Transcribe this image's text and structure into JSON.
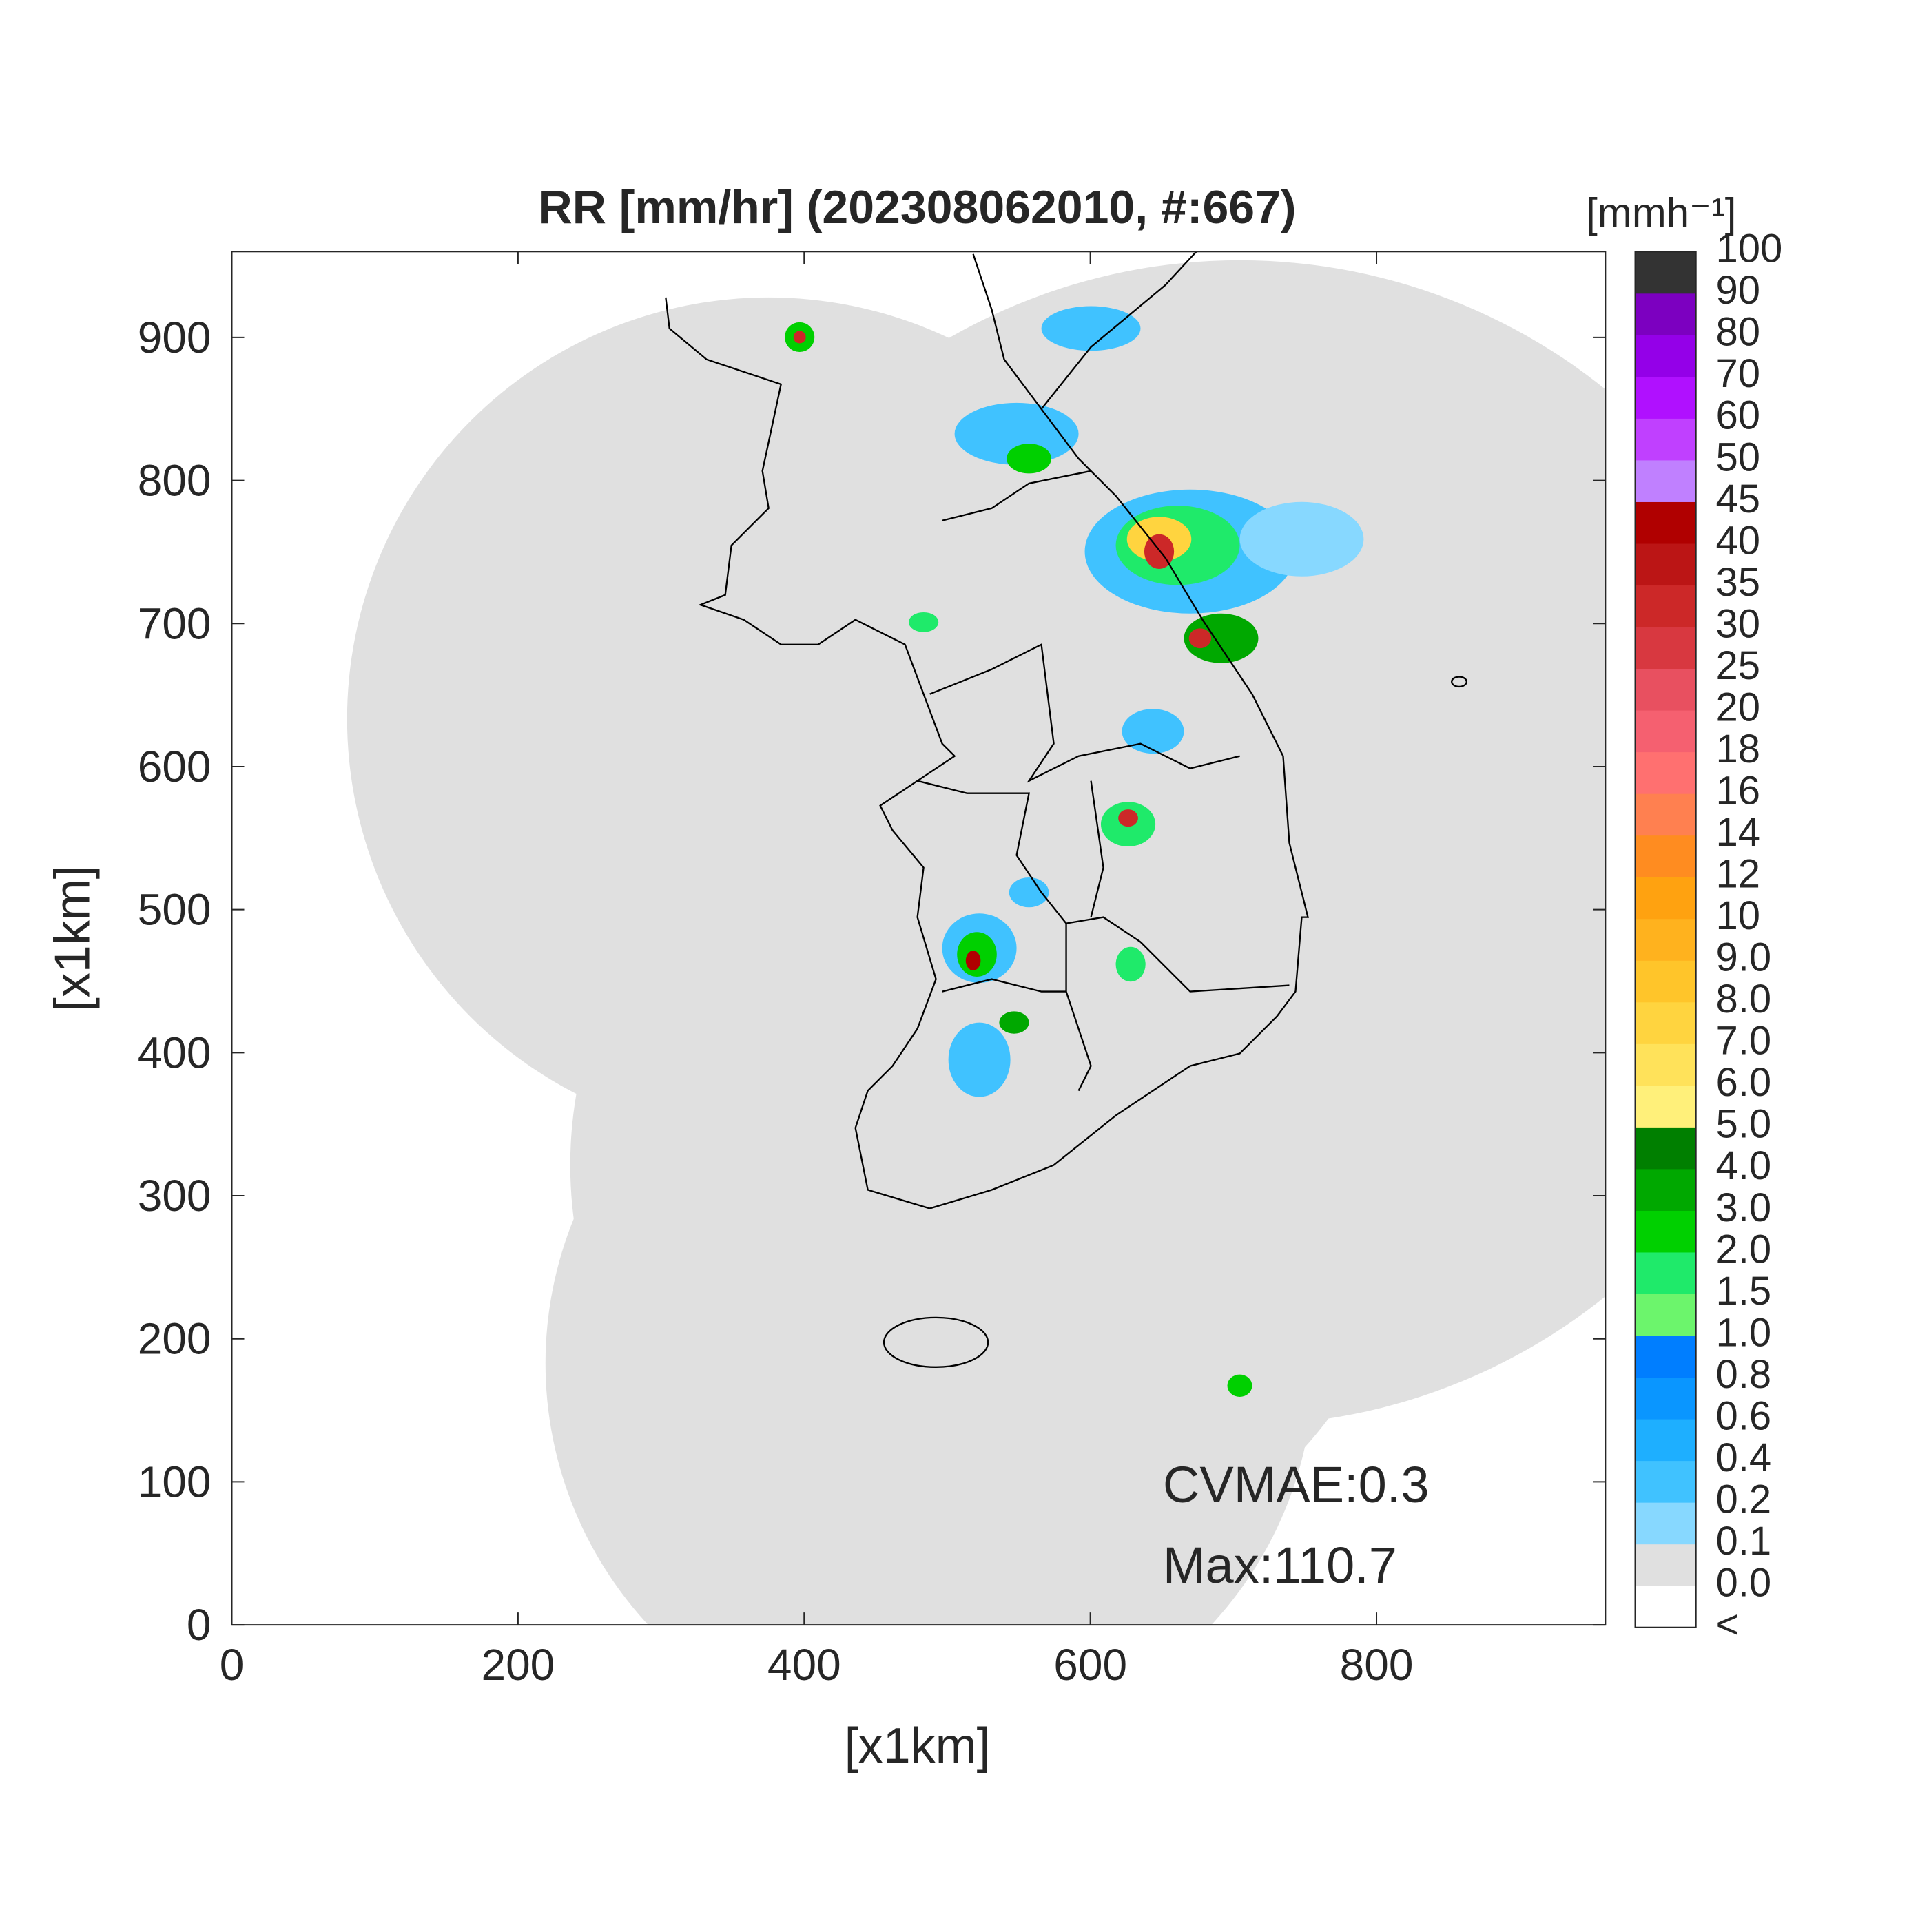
{
  "chart_data": {
    "type": "map",
    "title": "RR [mm/hr] (202308062010, #:667)",
    "x_label": "[x1km]",
    "y_label": "[x1km]",
    "xlim": [
      0,
      960
    ],
    "ylim": [
      0,
      960
    ],
    "xticks": [
      0,
      200,
      400,
      600,
      800
    ],
    "yticks": [
      0,
      100,
      200,
      300,
      400,
      500,
      600,
      700,
      800,
      900
    ],
    "annotations": [
      "CVMAE:0.3",
      "Max:110.7"
    ],
    "colorbar": {
      "title": "[mmh⁻¹]",
      "tick_labels": [
        "<",
        "0.0",
        "0.1",
        "0.2",
        "0.4",
        "0.6",
        "0.8",
        "1.0",
        "1.5",
        "2.0",
        "3.0",
        "4.0",
        "5.0",
        "6.0",
        "7.0",
        "8.0",
        "9.0",
        "10",
        "12",
        "14",
        "16",
        "18",
        "20",
        "25",
        "30",
        "35",
        "40",
        "45",
        "50",
        "60",
        "70",
        "80",
        "90",
        "100"
      ],
      "colors": [
        "#ffffff",
        "#e0e0e0",
        "#87d8ff",
        "#40c2ff",
        "#1eafff",
        "#0a96ff",
        "#007eff",
        "#6cf56c",
        "#1fea6a",
        "#00d000",
        "#00a800",
        "#007f00",
        "#fff07a",
        "#ffe25a",
        "#ffd43f",
        "#ffc52a",
        "#ffb21e",
        "#ffa210",
        "#ff8c20",
        "#ff8050",
        "#ff7070",
        "#f56070",
        "#e85060",
        "#d83840",
        "#cc2828",
        "#bb1515",
        "#b00000",
        "#c080ff",
        "#c040ff",
        "#b010ff",
        "#9400e8",
        "#7c00c0",
        "#333333"
      ]
    }
  }
}
